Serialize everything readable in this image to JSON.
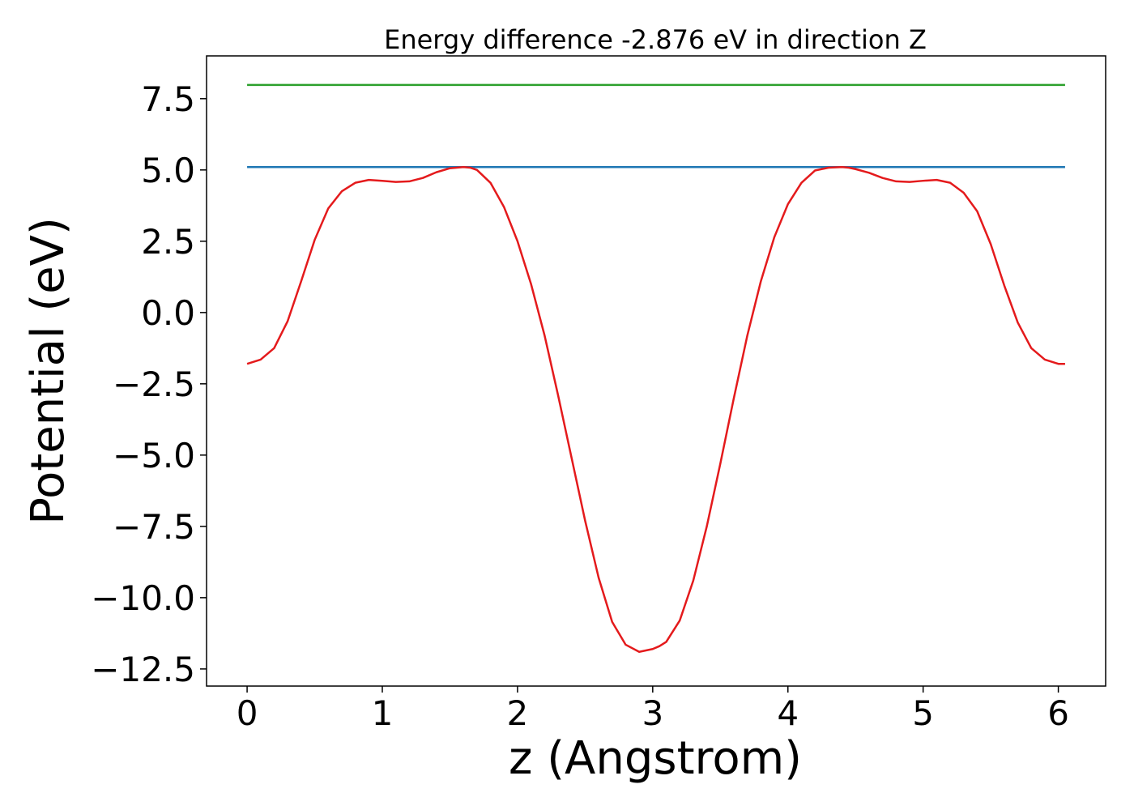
{
  "chart_data": {
    "type": "line",
    "title": "Energy difference -2.876 eV in direction Z",
    "xlabel": "z (Angstrom)",
    "ylabel": "Potential (eV)",
    "xlim": [
      -0.3,
      6.35
    ],
    "ylim": [
      -13.1,
      9.0
    ],
    "grid": false,
    "xticks": [
      0,
      1,
      2,
      3,
      4,
      5,
      6
    ],
    "xtick_labels": [
      "0",
      "1",
      "2",
      "3",
      "4",
      "5",
      "6"
    ],
    "yticks": [
      7.5,
      5.0,
      2.5,
      0.0,
      -2.5,
      -5.0,
      -7.5,
      -10.0,
      -12.5
    ],
    "ytick_labels": [
      "7.5",
      "5.0",
      "2.5",
      "0.0",
      "−2.5",
      "−5.0",
      "−7.5",
      "−10.0",
      "−12.5"
    ],
    "series": [
      {
        "color": "#2ca02c",
        "x": [
          0.0,
          6.05
        ],
        "y": [
          7.98,
          7.98
        ]
      },
      {
        "color": "#1f77b4",
        "x": [
          0.0,
          6.05
        ],
        "y": [
          5.1,
          5.1
        ]
      },
      {
        "color": "#e41a1c",
        "x": [
          0.0,
          0.1,
          0.2,
          0.3,
          0.4,
          0.5,
          0.6,
          0.7,
          0.8,
          0.9,
          1.0,
          1.1,
          1.2,
          1.3,
          1.4,
          1.5,
          1.6,
          1.65,
          1.7,
          1.8,
          1.9,
          2.0,
          2.1,
          2.2,
          2.3,
          2.4,
          2.5,
          2.6,
          2.7,
          2.8,
          2.9,
          3.0,
          3.05,
          3.1,
          3.2,
          3.3,
          3.4,
          3.5,
          3.6,
          3.7,
          3.8,
          3.9,
          4.0,
          4.1,
          4.2,
          4.3,
          4.4,
          4.45,
          4.5,
          4.6,
          4.7,
          4.8,
          4.9,
          5.0,
          5.1,
          5.2,
          5.3,
          5.4,
          5.5,
          5.6,
          5.7,
          5.8,
          5.9,
          6.0,
          6.05
        ],
        "y": [
          -1.8,
          -1.65,
          -1.25,
          -0.3,
          1.1,
          2.55,
          3.65,
          4.25,
          4.55,
          4.65,
          4.62,
          4.58,
          4.6,
          4.72,
          4.92,
          5.06,
          5.1,
          5.08,
          5.0,
          4.55,
          3.7,
          2.5,
          1.0,
          -0.8,
          -2.9,
          -5.1,
          -7.3,
          -9.3,
          -10.85,
          -11.65,
          -11.9,
          -11.8,
          -11.7,
          -11.55,
          -10.8,
          -9.4,
          -7.5,
          -5.3,
          -3.0,
          -0.8,
          1.1,
          2.65,
          3.8,
          4.55,
          4.98,
          5.08,
          5.1,
          5.08,
          5.03,
          4.9,
          4.72,
          4.6,
          4.58,
          4.62,
          4.65,
          4.55,
          4.2,
          3.55,
          2.4,
          0.95,
          -0.35,
          -1.25,
          -1.65,
          -1.8,
          -1.8
        ]
      }
    ]
  }
}
